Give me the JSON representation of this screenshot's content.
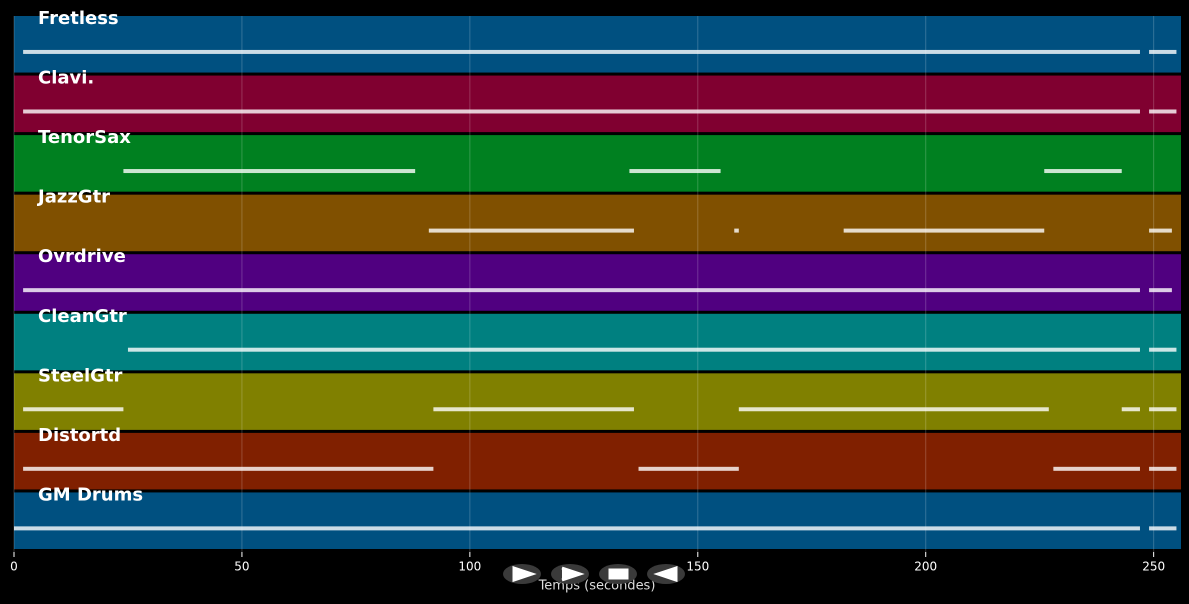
{
  "chart_data": {
    "type": "piano-roll",
    "xlabel": "Temps (secondes)",
    "xlim": [
      0,
      256
    ],
    "xticks": [
      0,
      50,
      100,
      150,
      200,
      250
    ],
    "grid": true,
    "series": [
      {
        "name": "Fretless",
        "color": "#005080",
        "segments": [
          [
            2,
            247
          ],
          [
            249,
            255
          ]
        ]
      },
      {
        "name": "Clavi.",
        "color": "#800030",
        "segments": [
          [
            2,
            247
          ],
          [
            249,
            255
          ]
        ]
      },
      {
        "name": "TenorSax",
        "color": "#008020",
        "segments": [
          [
            24,
            88
          ],
          [
            135,
            155
          ],
          [
            226,
            243
          ]
        ]
      },
      {
        "name": "JazzGtr",
        "color": "#805000",
        "segments": [
          [
            91,
            136
          ],
          [
            158,
            159
          ],
          [
            182,
            226
          ],
          [
            249,
            254
          ]
        ]
      },
      {
        "name": "Ovrdrive",
        "color": "#500080",
        "segments": [
          [
            2,
            247
          ],
          [
            249,
            254
          ]
        ]
      },
      {
        "name": "CleanGtr",
        "color": "#008080",
        "segments": [
          [
            25,
            247
          ],
          [
            249,
            255
          ]
        ]
      },
      {
        "name": "SteelGtr",
        "color": "#808000",
        "segments": [
          [
            2,
            24
          ],
          [
            92,
            136
          ],
          [
            159,
            227
          ],
          [
            243,
            247
          ],
          [
            249,
            255
          ]
        ]
      },
      {
        "name": "Distortd",
        "color": "#802000",
        "segments": [
          [
            2,
            92
          ],
          [
            137,
            159
          ],
          [
            228,
            247
          ],
          [
            249,
            255
          ]
        ]
      },
      {
        "name": "GM Drums",
        "color": "#005080",
        "segments": [
          [
            0,
            247
          ],
          [
            249,
            255
          ]
        ]
      }
    ]
  }
}
